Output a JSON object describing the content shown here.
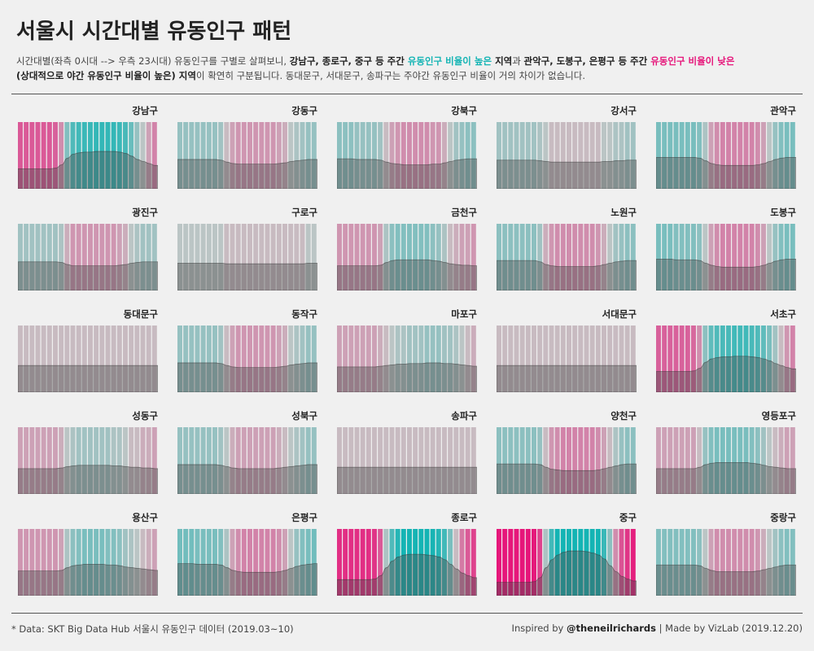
{
  "title": "서울시 시간대별 유동인구 패턴",
  "description": {
    "p1": "시간대별(좌측 0시대 --> 우측 23시대) 유동인구를 구별로 살펴보니, ",
    "b1": "강남구, 종로구, 중구 등 주간 ",
    "t1": "유동인구 비율이 높은",
    "b2": " 지역",
    "p2": "과 ",
    "b3": "관악구, 도봉구, 은평구 등 주간 ",
    "k1": "유동인구 비율이 낮은",
    "b4": "(상대적으로 야간 유동인구 비율이 높은) 지역",
    "p3": "이 확연히 구분됩니다. 동대문구, 서대문구, 송파구는 주야간 유동인구 비율이 거의 차이가 없습니다."
  },
  "footer": {
    "data_note": "* Data: SKT Big Data Hub 서울시 유동인구 데이터 (2019.03~10)",
    "inspired_prefix": "Inspired by ",
    "inspired_handle": "@theneilrichards",
    "separator": "  |  ",
    "made_by": "Made by VizLab (2019.12.20)"
  },
  "colors": {
    "teal": "#14b4b4",
    "pink": "#e6167a",
    "neutral": "#c6c6c6",
    "area": "#4a4a4a"
  },
  "chart_data": {
    "type": "area",
    "description": "Small multiples: hourly floating population share by district (hour 0 at left → hour 23 at right). Bar colour: teal = above-average share, pink = below-average share, grey = near average.",
    "x": [
      0,
      1,
      2,
      3,
      4,
      5,
      6,
      7,
      8,
      9,
      10,
      11,
      12,
      13,
      14,
      15,
      16,
      17,
      18,
      19,
      20,
      21,
      22,
      23
    ],
    "series": [
      {
        "name": "강남구",
        "values": [
          0.3,
          0.3,
          0.3,
          0.3,
          0.3,
          0.3,
          0.31,
          0.36,
          0.46,
          0.52,
          0.54,
          0.55,
          0.55,
          0.56,
          0.56,
          0.56,
          0.56,
          0.55,
          0.53,
          0.49,
          0.44,
          0.41,
          0.38,
          0.35
        ]
      },
      {
        "name": "강동구",
        "values": [
          0.44,
          0.44,
          0.44,
          0.44,
          0.44,
          0.44,
          0.44,
          0.43,
          0.4,
          0.38,
          0.37,
          0.37,
          0.37,
          0.37,
          0.37,
          0.37,
          0.37,
          0.38,
          0.39,
          0.41,
          0.42,
          0.43,
          0.44,
          0.44
        ]
      },
      {
        "name": "강북구",
        "values": [
          0.45,
          0.45,
          0.45,
          0.44,
          0.44,
          0.44,
          0.44,
          0.43,
          0.4,
          0.38,
          0.37,
          0.36,
          0.36,
          0.36,
          0.36,
          0.36,
          0.37,
          0.37,
          0.39,
          0.41,
          0.43,
          0.44,
          0.45,
          0.45
        ]
      },
      {
        "name": "강서구",
        "values": [
          0.43,
          0.43,
          0.43,
          0.43,
          0.43,
          0.43,
          0.43,
          0.42,
          0.41,
          0.4,
          0.4,
          0.4,
          0.4,
          0.4,
          0.4,
          0.4,
          0.4,
          0.4,
          0.41,
          0.41,
          0.42,
          0.42,
          0.43,
          0.43
        ]
      },
      {
        "name": "관악구",
        "values": [
          0.47,
          0.47,
          0.47,
          0.47,
          0.47,
          0.47,
          0.47,
          0.46,
          0.42,
          0.38,
          0.36,
          0.35,
          0.35,
          0.35,
          0.35,
          0.35,
          0.35,
          0.36,
          0.38,
          0.41,
          0.44,
          0.46,
          0.47,
          0.47
        ]
      },
      {
        "name": "광진구",
        "values": [
          0.43,
          0.43,
          0.43,
          0.43,
          0.43,
          0.43,
          0.43,
          0.42,
          0.39,
          0.37,
          0.37,
          0.37,
          0.37,
          0.37,
          0.37,
          0.37,
          0.37,
          0.38,
          0.39,
          0.41,
          0.42,
          0.43,
          0.43,
          0.43
        ]
      },
      {
        "name": "구로구",
        "values": [
          0.41,
          0.41,
          0.41,
          0.41,
          0.41,
          0.41,
          0.41,
          0.41,
          0.4,
          0.4,
          0.4,
          0.4,
          0.4,
          0.4,
          0.4,
          0.4,
          0.4,
          0.4,
          0.4,
          0.4,
          0.4,
          0.4,
          0.41,
          0.41
        ]
      },
      {
        "name": "금천구",
        "values": [
          0.37,
          0.37,
          0.37,
          0.37,
          0.37,
          0.37,
          0.37,
          0.38,
          0.42,
          0.45,
          0.46,
          0.46,
          0.46,
          0.46,
          0.46,
          0.46,
          0.45,
          0.44,
          0.42,
          0.4,
          0.39,
          0.38,
          0.38,
          0.37
        ]
      },
      {
        "name": "노원구",
        "values": [
          0.45,
          0.45,
          0.45,
          0.45,
          0.45,
          0.45,
          0.45,
          0.43,
          0.39,
          0.37,
          0.36,
          0.36,
          0.36,
          0.36,
          0.36,
          0.36,
          0.36,
          0.37,
          0.39,
          0.41,
          0.43,
          0.44,
          0.45,
          0.45
        ]
      },
      {
        "name": "도봉구",
        "values": [
          0.47,
          0.47,
          0.47,
          0.46,
          0.46,
          0.46,
          0.46,
          0.45,
          0.41,
          0.38,
          0.36,
          0.35,
          0.35,
          0.35,
          0.35,
          0.35,
          0.35,
          0.36,
          0.38,
          0.41,
          0.44,
          0.46,
          0.47,
          0.47
        ]
      },
      {
        "name": "동대문구",
        "values": [
          0.4,
          0.4,
          0.4,
          0.4,
          0.4,
          0.4,
          0.4,
          0.4,
          0.4,
          0.4,
          0.4,
          0.4,
          0.4,
          0.4,
          0.4,
          0.4,
          0.4,
          0.4,
          0.4,
          0.4,
          0.4,
          0.4,
          0.4,
          0.4
        ]
      },
      {
        "name": "동작구",
        "values": [
          0.44,
          0.44,
          0.44,
          0.44,
          0.44,
          0.44,
          0.44,
          0.43,
          0.4,
          0.38,
          0.37,
          0.37,
          0.37,
          0.37,
          0.37,
          0.37,
          0.37,
          0.38,
          0.39,
          0.41,
          0.42,
          0.43,
          0.44,
          0.44
        ]
      },
      {
        "name": "마포구",
        "values": [
          0.38,
          0.38,
          0.38,
          0.38,
          0.38,
          0.38,
          0.38,
          0.39,
          0.4,
          0.41,
          0.42,
          0.42,
          0.43,
          0.43,
          0.43,
          0.44,
          0.44,
          0.44,
          0.43,
          0.43,
          0.42,
          0.41,
          0.4,
          0.39
        ]
      },
      {
        "name": "서대문구",
        "values": [
          0.4,
          0.4,
          0.4,
          0.4,
          0.4,
          0.4,
          0.4,
          0.4,
          0.4,
          0.4,
          0.4,
          0.4,
          0.4,
          0.4,
          0.4,
          0.4,
          0.4,
          0.4,
          0.4,
          0.4,
          0.4,
          0.4,
          0.4,
          0.4
        ]
      },
      {
        "name": "서초구",
        "values": [
          0.31,
          0.31,
          0.31,
          0.31,
          0.31,
          0.31,
          0.32,
          0.36,
          0.45,
          0.5,
          0.52,
          0.53,
          0.53,
          0.54,
          0.54,
          0.54,
          0.53,
          0.52,
          0.5,
          0.47,
          0.43,
          0.4,
          0.37,
          0.35
        ]
      },
      {
        "name": "성동구",
        "values": [
          0.38,
          0.38,
          0.38,
          0.38,
          0.38,
          0.38,
          0.38,
          0.39,
          0.41,
          0.42,
          0.43,
          0.43,
          0.43,
          0.43,
          0.43,
          0.43,
          0.42,
          0.42,
          0.41,
          0.4,
          0.4,
          0.39,
          0.39,
          0.38
        ]
      },
      {
        "name": "성북구",
        "values": [
          0.44,
          0.44,
          0.44,
          0.44,
          0.44,
          0.44,
          0.44,
          0.43,
          0.41,
          0.39,
          0.38,
          0.38,
          0.38,
          0.38,
          0.38,
          0.38,
          0.38,
          0.39,
          0.4,
          0.41,
          0.42,
          0.43,
          0.44,
          0.44
        ]
      },
      {
        "name": "송파구",
        "values": [
          0.4,
          0.4,
          0.4,
          0.4,
          0.4,
          0.4,
          0.4,
          0.4,
          0.4,
          0.4,
          0.4,
          0.4,
          0.4,
          0.4,
          0.4,
          0.4,
          0.4,
          0.4,
          0.4,
          0.4,
          0.4,
          0.4,
          0.4,
          0.4
        ]
      },
      {
        "name": "양천구",
        "values": [
          0.45,
          0.45,
          0.45,
          0.45,
          0.45,
          0.45,
          0.45,
          0.44,
          0.4,
          0.37,
          0.36,
          0.35,
          0.35,
          0.35,
          0.35,
          0.35,
          0.35,
          0.36,
          0.38,
          0.4,
          0.42,
          0.44,
          0.45,
          0.45
        ]
      },
      {
        "name": "영등포구",
        "values": [
          0.38,
          0.38,
          0.38,
          0.38,
          0.38,
          0.38,
          0.38,
          0.4,
          0.44,
          0.46,
          0.47,
          0.47,
          0.47,
          0.47,
          0.47,
          0.47,
          0.46,
          0.45,
          0.43,
          0.41,
          0.4,
          0.39,
          0.38,
          0.38
        ]
      },
      {
        "name": "용산구",
        "values": [
          0.37,
          0.37,
          0.37,
          0.37,
          0.37,
          0.37,
          0.37,
          0.38,
          0.42,
          0.45,
          0.46,
          0.47,
          0.47,
          0.47,
          0.47,
          0.46,
          0.46,
          0.45,
          0.43,
          0.42,
          0.41,
          0.4,
          0.39,
          0.38
        ]
      },
      {
        "name": "은평구",
        "values": [
          0.48,
          0.48,
          0.48,
          0.47,
          0.47,
          0.47,
          0.47,
          0.46,
          0.42,
          0.38,
          0.36,
          0.35,
          0.35,
          0.35,
          0.35,
          0.35,
          0.35,
          0.36,
          0.38,
          0.41,
          0.44,
          0.46,
          0.47,
          0.48
        ]
      },
      {
        "name": "종로구",
        "values": [
          0.24,
          0.24,
          0.24,
          0.24,
          0.24,
          0.24,
          0.25,
          0.3,
          0.42,
          0.52,
          0.58,
          0.61,
          0.62,
          0.62,
          0.62,
          0.61,
          0.6,
          0.58,
          0.54,
          0.47,
          0.4,
          0.34,
          0.3,
          0.27
        ]
      },
      {
        "name": "중구",
        "values": [
          0.2,
          0.2,
          0.2,
          0.2,
          0.2,
          0.2,
          0.21,
          0.27,
          0.42,
          0.54,
          0.61,
          0.65,
          0.67,
          0.67,
          0.67,
          0.66,
          0.64,
          0.61,
          0.55,
          0.45,
          0.36,
          0.29,
          0.25,
          0.22
        ]
      },
      {
        "name": "중랑구",
        "values": [
          0.46,
          0.46,
          0.46,
          0.46,
          0.46,
          0.46,
          0.46,
          0.45,
          0.41,
          0.38,
          0.36,
          0.36,
          0.36,
          0.36,
          0.36,
          0.36,
          0.36,
          0.37,
          0.39,
          0.41,
          0.43,
          0.45,
          0.46,
          0.46
        ]
      }
    ]
  }
}
